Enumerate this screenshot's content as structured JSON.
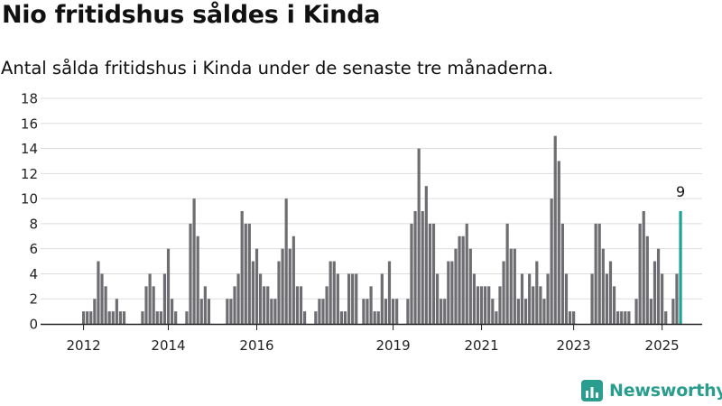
{
  "title": "Nio fritidshus såldes i Kinda",
  "subtitle": "Antal sålda fritidshus i Kinda under de senaste tre månaderna.",
  "brand": {
    "name": "Newsworthy",
    "icon": "newsworthy-logo-icon"
  },
  "colors": {
    "bar": "#6e6e72",
    "highlight": "#1aa396",
    "grid": "#dddddd",
    "axis": "#222222",
    "brand": "#2a9d8f"
  },
  "chart_data": {
    "type": "bar",
    "xlabel": "",
    "ylabel": "",
    "ylim": [
      0,
      18
    ],
    "yticks": [
      0,
      2,
      4,
      6,
      8,
      10,
      12,
      14,
      16,
      18
    ],
    "grid": true,
    "xtick_labels": [
      {
        "label": "2012",
        "index": 0
      },
      {
        "label": "2014",
        "index": 23
      },
      {
        "label": "2016",
        "index": 47
      },
      {
        "label": "2019",
        "index": 84
      },
      {
        "label": "2021",
        "index": 108
      },
      {
        "label": "2023",
        "index": 133
      },
      {
        "label": "2025",
        "index": 157
      }
    ],
    "values": [
      1,
      1,
      1,
      2,
      5,
      4,
      3,
      1,
      1,
      2,
      1,
      1,
      0,
      0,
      0,
      0,
      1,
      3,
      4,
      3,
      1,
      1,
      4,
      6,
      2,
      1,
      0,
      0,
      1,
      8,
      10,
      7,
      2,
      3,
      2,
      0,
      0,
      0,
      0,
      2,
      2,
      3,
      4,
      9,
      8,
      8,
      5,
      6,
      4,
      3,
      3,
      2,
      2,
      5,
      6,
      10,
      6,
      7,
      3,
      3,
      1,
      0,
      0,
      1,
      2,
      2,
      3,
      5,
      5,
      4,
      1,
      1,
      4,
      4,
      4,
      0,
      2,
      2,
      3,
      1,
      1,
      4,
      2,
      5,
      2,
      2,
      0,
      0,
      2,
      8,
      9,
      14,
      9,
      11,
      8,
      8,
      4,
      2,
      2,
      5,
      5,
      6,
      7,
      7,
      8,
      6,
      4,
      3,
      3,
      3,
      3,
      2,
      1,
      3,
      5,
      8,
      6,
      6,
      2,
      4,
      2,
      4,
      3,
      5,
      3,
      2,
      4,
      10,
      15,
      13,
      8,
      4,
      1,
      1,
      0,
      0,
      0,
      0,
      4,
      8,
      8,
      6,
      4,
      5,
      3,
      1,
      1,
      1,
      1,
      0,
      2,
      8,
      9,
      7,
      2,
      5,
      6,
      4,
      1,
      0,
      2,
      4,
      9
    ],
    "highlight_last": true,
    "annotations": [
      {
        "index": 162,
        "text": "9"
      }
    ]
  }
}
